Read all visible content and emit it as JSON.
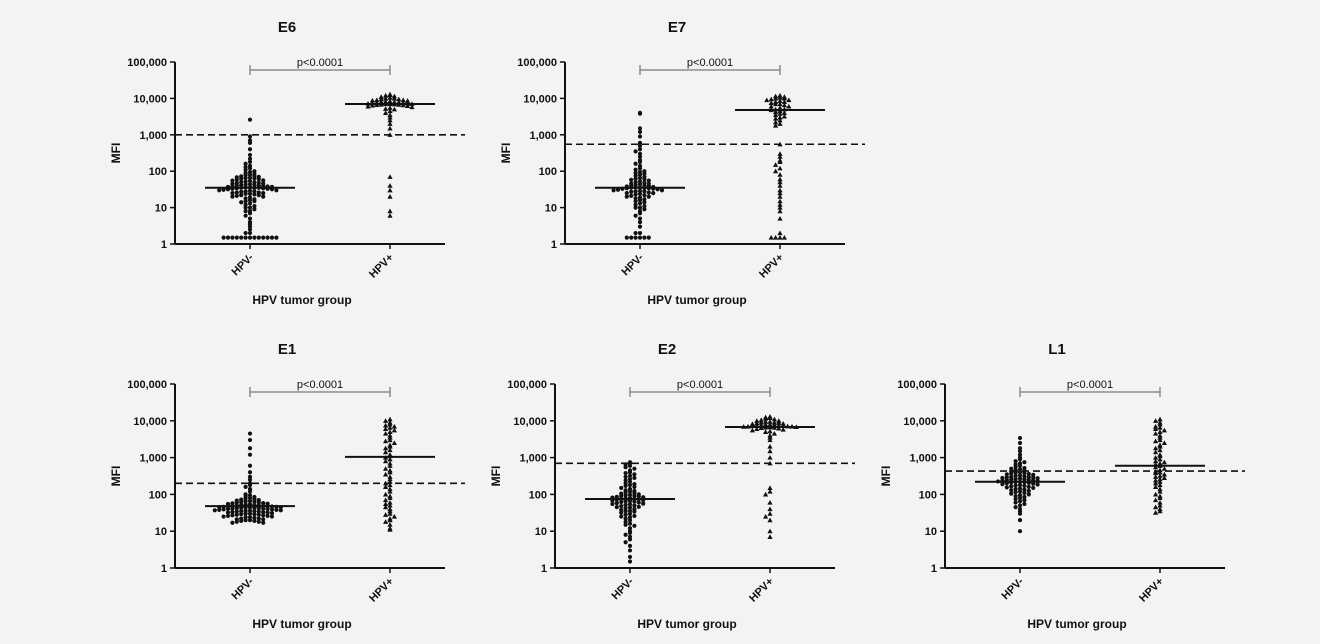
{
  "figure": {
    "background": "#f3f3f3",
    "point_color": "#111111",
    "axis_color": "#111111",
    "bracket_color": "#777777"
  },
  "chart_data": [
    {
      "type": "scatter",
      "title": "E6",
      "xlabel": "HPV tumor group",
      "ylabel": "MFI",
      "yscale": "log",
      "ylim": [
        1,
        100000
      ],
      "yticks": [
        "1",
        "10",
        "100",
        "1,000",
        "10,000",
        "100,000"
      ],
      "categories": [
        "HPV-",
        "HPV+"
      ],
      "annotation": "p<0.0001",
      "cutoff": 1000,
      "series": [
        {
          "marker": "circle",
          "median": 35,
          "values": [
            2600,
            900,
            700,
            600,
            400,
            280,
            220,
            180,
            160,
            140,
            130,
            120,
            110,
            100,
            95,
            90,
            85,
            80,
            78,
            75,
            72,
            70,
            68,
            66,
            65,
            64,
            62,
            60,
            58,
            56,
            55,
            54,
            52,
            50,
            50,
            48,
            47,
            46,
            45,
            44,
            43,
            42,
            41,
            40,
            40,
            39,
            38,
            38,
            37,
            37,
            36,
            36,
            35,
            35,
            35,
            34,
            34,
            33,
            33,
            32,
            32,
            31,
            30,
            30,
            29,
            28,
            28,
            27,
            26,
            26,
            25,
            25,
            24,
            24,
            23,
            22,
            22,
            21,
            20,
            20,
            19,
            18,
            17,
            16,
            15,
            15,
            14,
            13,
            12,
            11,
            10,
            10,
            9,
            8,
            8,
            7,
            6,
            5,
            4,
            3.5,
            3,
            2.5,
            2,
            2,
            1.5,
            1.5,
            1.5,
            1.5,
            1.5,
            1.5,
            1.5,
            1.5,
            1.5,
            1.5,
            1.5,
            1.5,
            1.5
          ]
        },
        {
          "marker": "triangle",
          "median": 7000,
          "values": [
            13000,
            12500,
            12000,
            11500,
            11000,
            10500,
            10000,
            10000,
            9500,
            9500,
            9000,
            9000,
            8800,
            8600,
            8400,
            8200,
            8000,
            8000,
            7800,
            7600,
            7500,
            7400,
            7300,
            7200,
            7100,
            7000,
            7000,
            6900,
            6800,
            6700,
            6600,
            6500,
            6400,
            6200,
            6000,
            5800,
            5500,
            5200,
            5000,
            4500,
            4000,
            3500,
            3000,
            2500,
            2000,
            1500,
            1000,
            70,
            40,
            30,
            20,
            8,
            6
          ]
        }
      ]
    },
    {
      "type": "scatter",
      "title": "E7",
      "xlabel": "HPV tumor group",
      "ylabel": "MFI",
      "yscale": "log",
      "ylim": [
        1,
        100000
      ],
      "yticks": [
        "1",
        "10",
        "100",
        "1,000",
        "10,000",
        "100,000"
      ],
      "categories": [
        "HPV-",
        "HPV+"
      ],
      "annotation": "p<0.0001",
      "cutoff": 550,
      "series": [
        {
          "marker": "circle",
          "median": 35,
          "values": [
            4000,
            3800,
            1500,
            1200,
            900,
            600,
            500,
            400,
            350,
            300,
            250,
            200,
            180,
            160,
            140,
            120,
            110,
            100,
            95,
            90,
            85,
            80,
            75,
            70,
            65,
            62,
            60,
            58,
            55,
            52,
            50,
            48,
            46,
            45,
            44,
            42,
            40,
            40,
            39,
            38,
            37,
            36,
            36,
            35,
            35,
            34,
            34,
            33,
            33,
            32,
            31,
            30,
            30,
            29,
            28,
            28,
            27,
            26,
            25,
            25,
            24,
            23,
            22,
            21,
            20,
            20,
            19,
            18,
            17,
            16,
            15,
            14,
            13,
            12,
            11,
            10,
            10,
            9,
            8,
            7,
            6,
            5,
            4,
            3,
            2,
            2,
            1.5,
            1.5,
            1.5,
            1.5,
            1.5,
            1.5
          ]
        },
        {
          "marker": "triangle",
          "median": 4800,
          "values": [
            12000,
            11500,
            11000,
            10500,
            10000,
            10000,
            9500,
            9000,
            9000,
            8500,
            8000,
            8000,
            7500,
            7000,
            7000,
            6500,
            6000,
            6000,
            5500,
            5000,
            5000,
            4800,
            4500,
            4200,
            4000,
            3800,
            3500,
            3200,
            3000,
            2800,
            2500,
            2200,
            2000,
            1800,
            550,
            300,
            250,
            200,
            180,
            150,
            120,
            100,
            80,
            60,
            50,
            40,
            30,
            25,
            20,
            15,
            12,
            10,
            8,
            5,
            2,
            1.5,
            1.5,
            1.5,
            1.5
          ]
        }
      ]
    },
    {
      "type": "scatter",
      "title": "E1",
      "xlabel": "HPV tumor group",
      "ylabel": "MFI",
      "yscale": "log",
      "ylim": [
        1,
        100000
      ],
      "yticks": [
        "1",
        "10",
        "100",
        "1,000",
        "10,000",
        "100,000"
      ],
      "categories": [
        "HPV-",
        "HPV+"
      ],
      "annotation": "p<0.0001",
      "cutoff": 200,
      "series": [
        {
          "marker": "circle",
          "median": 48,
          "values": [
            4500,
            3000,
            1800,
            1200,
            600,
            400,
            300,
            250,
            200,
            180,
            160,
            140,
            120,
            100,
            95,
            90,
            85,
            80,
            78,
            75,
            72,
            70,
            68,
            66,
            65,
            64,
            62,
            60,
            60,
            58,
            57,
            56,
            55,
            54,
            53,
            52,
            51,
            50,
            50,
            49,
            48,
            48,
            47,
            47,
            46,
            46,
            45,
            45,
            44,
            44,
            43,
            43,
            42,
            42,
            41,
            41,
            40,
            40,
            39,
            39,
            38,
            38,
            37,
            37,
            36,
            36,
            35,
            35,
            34,
            34,
            33,
            33,
            32,
            32,
            31,
            30,
            30,
            29,
            29,
            28,
            28,
            27,
            27,
            26,
            26,
            25,
            25,
            24,
            24,
            23,
            22,
            22,
            21,
            21,
            20,
            20,
            19,
            19,
            18,
            18,
            17,
            17
          ]
        },
        {
          "marker": "triangle",
          "median": 1050,
          "values": [
            11000,
            10000,
            9000,
            8000,
            7500,
            7000,
            6500,
            6000,
            5500,
            5000,
            4500,
            4000,
            3500,
            3000,
            2800,
            2500,
            2200,
            2000,
            1800,
            1600,
            1400,
            1200,
            1100,
            1000,
            900,
            800,
            700,
            600,
            500,
            450,
            400,
            350,
            300,
            260,
            220,
            200,
            180,
            160,
            140,
            120,
            100,
            90,
            80,
            70,
            60,
            55,
            50,
            45,
            40,
            35,
            30,
            28,
            25,
            22,
            20,
            18,
            15,
            12,
            11
          ]
        }
      ]
    },
    {
      "type": "scatter",
      "title": "E2",
      "xlabel": "HPV tumor group",
      "ylabel": "MFI",
      "yscale": "log",
      "ylim": [
        1,
        100000
      ],
      "yticks": [
        "1",
        "10",
        "100",
        "1,000",
        "10,000",
        "100,000"
      ],
      "categories": [
        "HPV-",
        "HPV+"
      ],
      "annotation": "p<0.0001",
      "cutoff": 700,
      "series": [
        {
          "marker": "circle",
          "median": 75,
          "values": [
            750,
            700,
            650,
            600,
            550,
            500,
            450,
            400,
            380,
            350,
            320,
            300,
            280,
            260,
            240,
            220,
            200,
            190,
            180,
            170,
            160,
            150,
            140,
            130,
            125,
            120,
            115,
            110,
            105,
            100,
            98,
            95,
            92,
            90,
            88,
            86,
            84,
            82,
            80,
            78,
            76,
            75,
            74,
            72,
            70,
            68,
            66,
            65,
            64,
            62,
            60,
            58,
            56,
            55,
            54,
            52,
            50,
            48,
            46,
            45,
            44,
            42,
            40,
            38,
            36,
            35,
            34,
            32,
            30,
            28,
            26,
            25,
            24,
            22,
            20,
            18,
            16,
            15,
            14,
            12,
            10,
            9,
            8,
            7,
            6,
            5,
            4,
            3,
            2,
            1.5
          ]
        },
        {
          "marker": "triangle",
          "median": 6800,
          "values": [
            13000,
            12500,
            12000,
            11500,
            11000,
            10500,
            10000,
            10000,
            9500,
            9500,
            9000,
            9000,
            8800,
            8600,
            8400,
            8200,
            8000,
            8000,
            7800,
            7600,
            7500,
            7400,
            7300,
            7200,
            7100,
            7000,
            7000,
            6900,
            6800,
            6700,
            6600,
            6500,
            6400,
            6200,
            6000,
            5800,
            5500,
            5200,
            5000,
            4500,
            4000,
            3500,
            3000,
            2000,
            1500,
            1000,
            700,
            150,
            120,
            100,
            60,
            40,
            30,
            25,
            20,
            10,
            7
          ]
        }
      ]
    },
    {
      "type": "scatter",
      "title": "L1",
      "xlabel": "HPV tumor group",
      "ylabel": "MFI",
      "yscale": "log",
      "ylim": [
        1,
        100000
      ],
      "yticks": [
        "1",
        "10",
        "100",
        "1,000",
        "10,000",
        "100,000"
      ],
      "categories": [
        "HPV-",
        "HPV+"
      ],
      "annotation": "p<0.0001",
      "cutoff": 430,
      "series": [
        {
          "marker": "circle",
          "median": 220,
          "values": [
            3400,
            2500,
            1800,
            1500,
            1200,
            1000,
            900,
            800,
            750,
            700,
            650,
            600,
            560,
            520,
            500,
            480,
            460,
            440,
            420,
            400,
            390,
            380,
            370,
            360,
            350,
            340,
            330,
            320,
            310,
            300,
            295,
            290,
            285,
            280,
            275,
            270,
            265,
            260,
            255,
            250,
            245,
            240,
            235,
            230,
            225,
            220,
            220,
            215,
            210,
            205,
            200,
            195,
            190,
            185,
            180,
            175,
            170,
            165,
            160,
            155,
            150,
            145,
            140,
            135,
            130,
            125,
            120,
            115,
            110,
            105,
            100,
            95,
            90,
            85,
            80,
            75,
            70,
            65,
            60,
            55,
            50,
            45,
            40,
            35,
            30,
            20,
            10
          ]
        },
        {
          "marker": "triangle",
          "median": 600,
          "values": [
            11000,
            10000,
            9000,
            8000,
            7000,
            6500,
            6000,
            5500,
            5000,
            4500,
            4000,
            3500,
            3000,
            2800,
            2500,
            2200,
            2000,
            1800,
            1600,
            1400,
            1200,
            1100,
            1000,
            900,
            800,
            750,
            700,
            650,
            600,
            550,
            500,
            460,
            420,
            400,
            380,
            350,
            320,
            300,
            280,
            260,
            240,
            220,
            200,
            180,
            160,
            140,
            120,
            100,
            90,
            80,
            70,
            60,
            50,
            45,
            40,
            35,
            32
          ]
        }
      ]
    }
  ]
}
